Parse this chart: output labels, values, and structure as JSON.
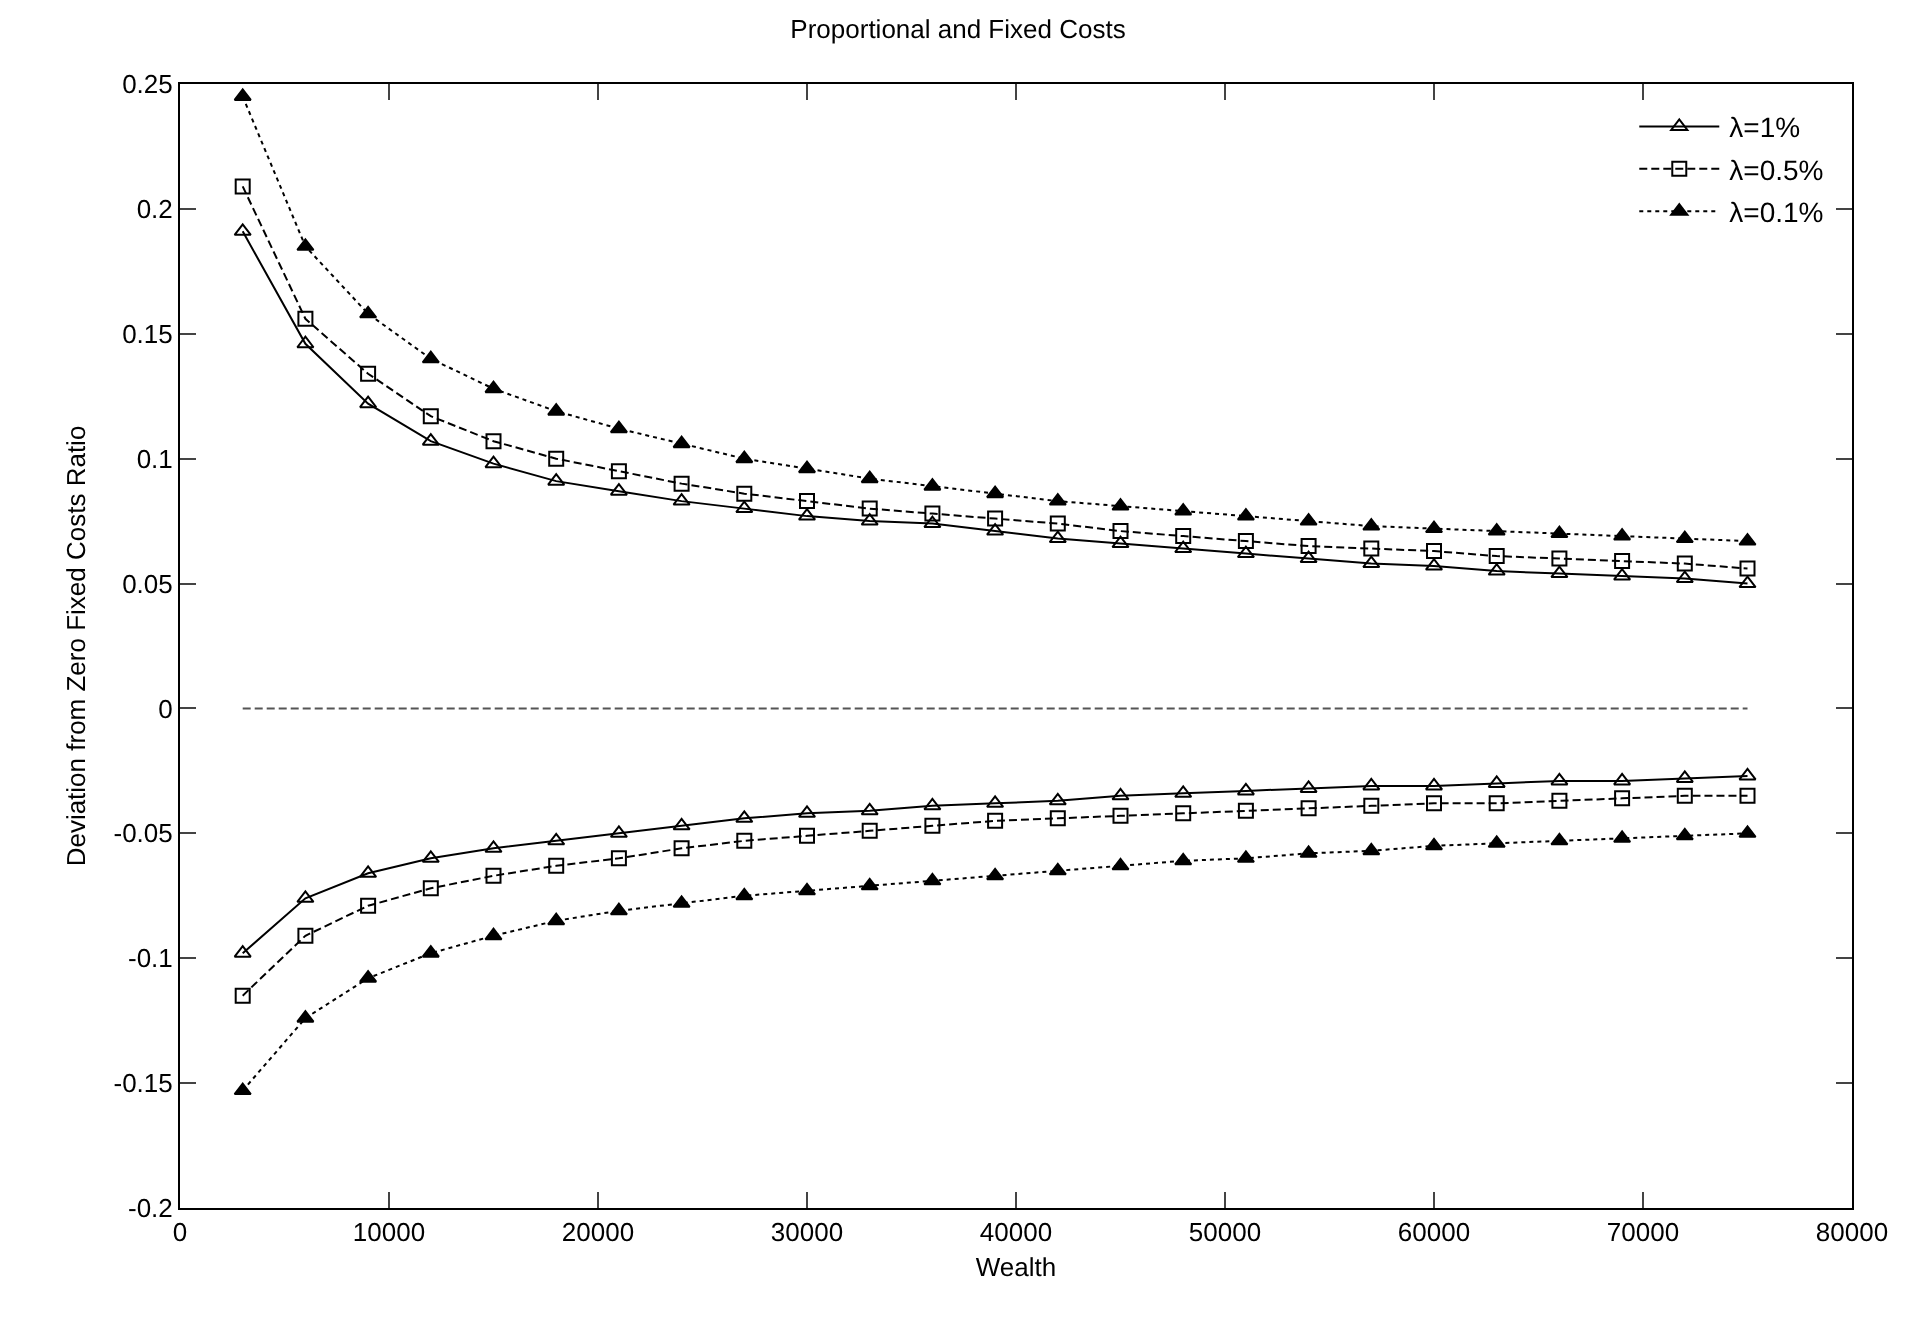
{
  "chart_data": {
    "type": "line",
    "title": "Proportional and Fixed Costs",
    "xlabel": "Wealth",
    "ylabel": "Deviation from Zero Fixed Costs Ratio",
    "x": [
      3000,
      6000,
      9000,
      12000,
      15000,
      18000,
      21000,
      24000,
      27000,
      30000,
      33000,
      36000,
      39000,
      42000,
      45000,
      48000,
      51000,
      54000,
      57000,
      60000,
      63000,
      66000,
      69000,
      72000,
      75000
    ],
    "series": [
      {
        "name": "λ=1%",
        "color": "#000000",
        "marker": "triangle-open",
        "line_style": "solid",
        "values": [
          0.191,
          0.146,
          0.122,
          0.107,
          0.098,
          0.091,
          0.087,
          0.083,
          0.08,
          0.077,
          0.075,
          0.074,
          0.071,
          0.068,
          0.066,
          0.064,
          0.062,
          0.06,
          0.058,
          0.057,
          0.055,
          0.054,
          0.053,
          0.052,
          0.05
        ]
      },
      {
        "name": "λ=0.5%",
        "color": "#000000",
        "marker": "square-open",
        "line_style": "dashed",
        "values": [
          0.209,
          0.156,
          0.134,
          0.117,
          0.107,
          0.1,
          0.095,
          0.09,
          0.086,
          0.083,
          0.08,
          0.078,
          0.076,
          0.074,
          0.071,
          0.069,
          0.067,
          0.065,
          0.064,
          0.063,
          0.061,
          0.06,
          0.059,
          0.058,
          0.056
        ]
      },
      {
        "name": "λ=0.1%",
        "color": "#000000",
        "marker": "triangle",
        "line_style": "dotted",
        "values": [
          0.245,
          0.185,
          0.158,
          0.14,
          0.128,
          0.119,
          0.112,
          0.106,
          0.1,
          0.096,
          0.092,
          0.089,
          0.086,
          0.083,
          0.081,
          0.079,
          0.077,
          0.075,
          0.073,
          0.072,
          0.071,
          0.07,
          0.069,
          0.068,
          0.067
        ]
      },
      {
        "color": "#000000",
        "marker": "triangle-open",
        "line_style": "solid",
        "values": [
          -0.098,
          -0.076,
          -0.066,
          -0.06,
          -0.056,
          -0.053,
          -0.05,
          -0.047,
          -0.044,
          -0.042,
          -0.041,
          -0.039,
          -0.038,
          -0.037,
          -0.035,
          -0.034,
          -0.033,
          -0.032,
          -0.031,
          -0.031,
          -0.03,
          -0.029,
          -0.029,
          -0.028,
          -0.027
        ]
      },
      {
        "color": "#000000",
        "marker": "square-open",
        "line_style": "dashed",
        "values": [
          -0.115,
          -0.091,
          -0.079,
          -0.072,
          -0.067,
          -0.063,
          -0.06,
          -0.056,
          -0.053,
          -0.051,
          -0.049,
          -0.047,
          -0.045,
          -0.044,
          -0.043,
          -0.042,
          -0.041,
          -0.04,
          -0.039,
          -0.038,
          -0.038,
          -0.037,
          -0.036,
          -0.035,
          -0.035
        ]
      },
      {
        "color": "#000000",
        "marker": "triangle",
        "line_style": "dotted",
        "values": [
          -0.153,
          -0.124,
          -0.108,
          -0.098,
          -0.091,
          -0.085,
          -0.081,
          -0.078,
          -0.075,
          -0.073,
          -0.071,
          -0.069,
          -0.067,
          -0.065,
          -0.063,
          -0.061,
          -0.06,
          -0.058,
          -0.057,
          -0.055,
          -0.054,
          -0.053,
          -0.052,
          -0.051,
          -0.05
        ]
      },
      {
        "color": "#555555",
        "marker": "none",
        "line_style": "dashed",
        "values": [
          0,
          0,
          0,
          0,
          0,
          0,
          0,
          0,
          0,
          0,
          0,
          0,
          0,
          0,
          0,
          0,
          0,
          0,
          0,
          0,
          0,
          0,
          0,
          0,
          0
        ]
      }
    ],
    "xlim": [
      0,
      80000
    ],
    "xticks": [
      0,
      10000,
      20000,
      30000,
      40000,
      50000,
      60000,
      70000,
      80000
    ],
    "ylim": [
      -0.2,
      0.25
    ],
    "yticks": [
      -0.2,
      -0.15,
      -0.1,
      -0.05,
      0,
      0.05,
      0.1,
      0.15,
      0.2,
      0.25
    ],
    "legend": "top right"
  }
}
